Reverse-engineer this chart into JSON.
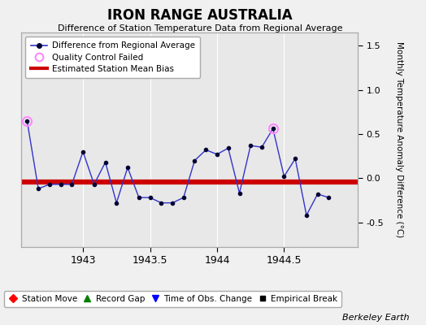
{
  "title": "IRON RANGE AUSTRALIA",
  "subtitle": "Difference of Station Temperature Data from Regional Average",
  "ylabel_right": "Monthly Temperature Anomaly Difference (°C)",
  "xlim": [
    1942.54,
    1945.05
  ],
  "ylim": [
    -0.78,
    1.65
  ],
  "yticks": [
    -0.5,
    0.0,
    0.5,
    1.0,
    1.5
  ],
  "xticks": [
    1943.0,
    1943.5,
    1944.0,
    1944.5
  ],
  "xticklabels": [
    "1943",
    "1943.5",
    "1944",
    "1944.5"
  ],
  "background_color": "#f0f0f0",
  "plot_background": "#e8e8e8",
  "bias_value": -0.04,
  "x_data": [
    1942.583,
    1942.667,
    1942.75,
    1942.833,
    1942.917,
    1943.0,
    1943.083,
    1943.167,
    1943.25,
    1943.333,
    1943.417,
    1943.5,
    1943.583,
    1943.667,
    1943.75,
    1943.833,
    1943.917,
    1944.0,
    1944.083,
    1944.167,
    1944.25,
    1944.333,
    1944.417,
    1944.5,
    1944.583,
    1944.667,
    1944.75,
    1944.833
  ],
  "y_data": [
    0.65,
    -0.12,
    -0.07,
    -0.07,
    -0.07,
    0.3,
    -0.07,
    0.18,
    -0.28,
    0.12,
    -0.22,
    -0.22,
    -0.28,
    -0.28,
    -0.22,
    0.2,
    0.32,
    0.27,
    0.34,
    -0.17,
    0.37,
    0.35,
    0.56,
    0.02,
    0.22,
    -0.42,
    -0.18,
    -0.22
  ],
  "qc_failed_indices": [
    0,
    22
  ],
  "line_color": "#3333cc",
  "marker_color": "#000033",
  "qc_color": "#ff88ff",
  "bias_color": "#cc0000",
  "watermark": "Berkeley Earth",
  "legend1_entries": [
    "Difference from Regional Average",
    "Quality Control Failed",
    "Estimated Station Mean Bias"
  ],
  "legend2_entries": [
    "Station Move",
    "Record Gap",
    "Time of Obs. Change",
    "Empirical Break"
  ]
}
